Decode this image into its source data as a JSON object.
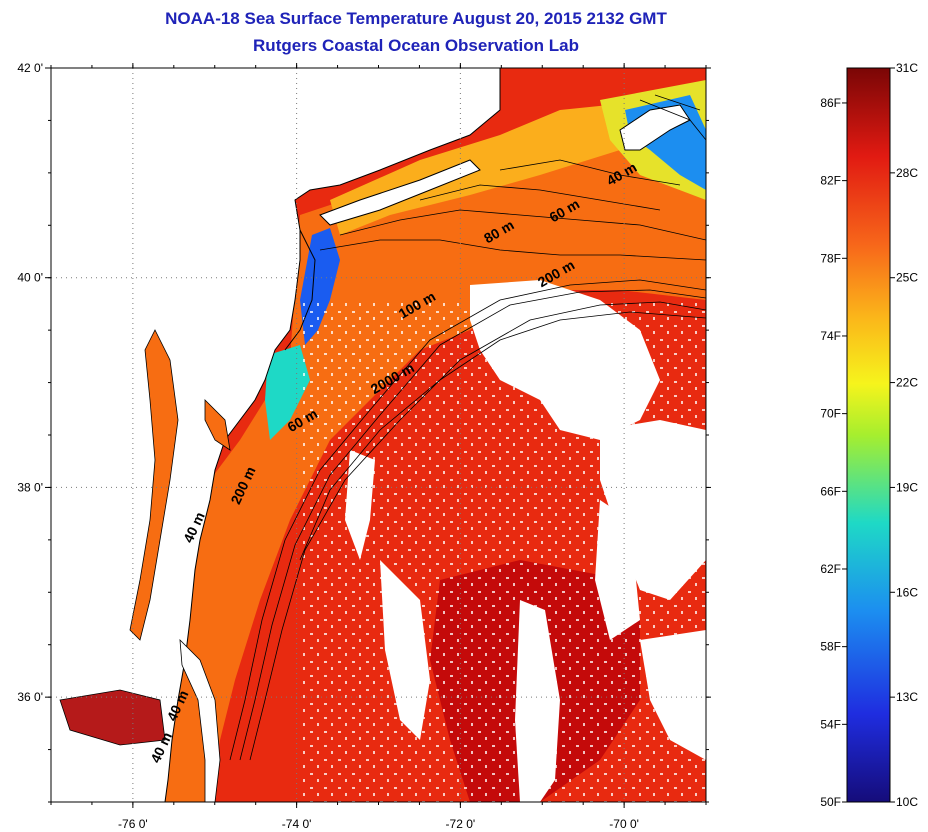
{
  "header": {
    "title_line1": "NOAA-18 Sea Surface Temperature August 20, 2015 2132 GMT",
    "title_line2": "Rutgers Coastal Ocean Observation Lab"
  },
  "map": {
    "lat_range": [
      35.0,
      42.0
    ],
    "lon_range": [
      -77.0,
      -69.0
    ],
    "lat_ticks": [
      {
        "value": 42,
        "label": "42 0'"
      },
      {
        "value": 40,
        "label": "40 0'"
      },
      {
        "value": 38,
        "label": "38 0'"
      },
      {
        "value": 36,
        "label": "36 0'"
      }
    ],
    "lon_ticks": [
      {
        "value": -76,
        "label": "-76 0'"
      },
      {
        "value": -74,
        "label": "-74 0'"
      },
      {
        "value": -72,
        "label": "-72 0'"
      },
      {
        "value": -70,
        "label": "-70 0'"
      }
    ],
    "depth_labels": [
      {
        "text": "40 m",
        "lon": -70.0,
        "lat": 40.95
      },
      {
        "text": "60 m",
        "lon": -70.7,
        "lat": 40.6
      },
      {
        "text": "80 m",
        "lon": -71.5,
        "lat": 40.4
      },
      {
        "text": "200 m",
        "lon": -70.8,
        "lat": 40.0
      },
      {
        "text": "100 m",
        "lon": -72.5,
        "lat": 39.7
      },
      {
        "text": "2000 m",
        "lon": -72.8,
        "lat": 39.0
      },
      {
        "text": "60 m",
        "lon": -73.9,
        "lat": 38.6
      },
      {
        "text": "200 m",
        "lon": -74.6,
        "lat": 38.0
      },
      {
        "text": "40 m",
        "lon": -75.2,
        "lat": 37.6
      },
      {
        "text": "40 m",
        "lon": -75.4,
        "lat": 35.9
      },
      {
        "text": "40 m",
        "lon": -75.6,
        "lat": 35.5
      }
    ],
    "colors": {
      "land": "#ffffff",
      "cloud": "#ffffff",
      "warm_core": "#c40a0a",
      "slope": "#e82a10",
      "shelf": "#f76d12",
      "nearshore": "#fbae1c",
      "cold": "#1a5cf0"
    }
  },
  "colorbar": {
    "c_min": 10,
    "c_max": 31,
    "celsius_ticks": [
      {
        "value": 31,
        "label": "31C"
      },
      {
        "value": 28,
        "label": "28C"
      },
      {
        "value": 25,
        "label": "25C"
      },
      {
        "value": 22,
        "label": "22C"
      },
      {
        "value": 19,
        "label": "19C"
      },
      {
        "value": 16,
        "label": "16C"
      },
      {
        "value": 13,
        "label": "13C"
      },
      {
        "value": 10,
        "label": "10C"
      }
    ],
    "fahrenheit_ticks": [
      {
        "value": 86,
        "label": "86F"
      },
      {
        "value": 82,
        "label": "82F"
      },
      {
        "value": 78,
        "label": "78F"
      },
      {
        "value": 74,
        "label": "74F"
      },
      {
        "value": 70,
        "label": "70F"
      },
      {
        "value": 66,
        "label": "66F"
      },
      {
        "value": 62,
        "label": "62F"
      },
      {
        "value": 58,
        "label": "58F"
      },
      {
        "value": 54,
        "label": "54F"
      },
      {
        "value": 50,
        "label": "50F"
      }
    ]
  }
}
